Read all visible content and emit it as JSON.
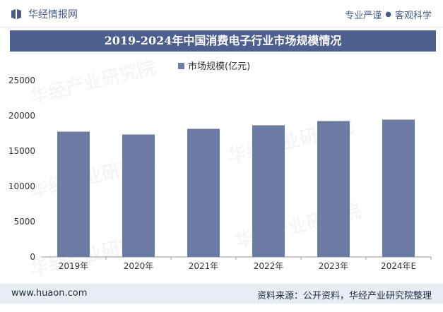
{
  "header": {
    "brand": "华经情报网",
    "tagline_left": "专业严谨",
    "tagline_right": "客观科学"
  },
  "title": "2019-2024年中国消费电子行业市场规模情况",
  "watermark": "华经产业研究院",
  "footer": {
    "url": "www.huaon.com",
    "source": "资料来源：公开资料，华经产业研究院整理"
  },
  "colors": {
    "bar": "#6b7ba3",
    "title_bg": "#4d5f8c",
    "brand": "#4a5c82"
  },
  "chart_data": {
    "type": "bar",
    "title": "2019-2024年中国消费电子行业市场规模情况",
    "categories": [
      "2019年",
      "2020年",
      "2021年",
      "2022年",
      "2023年",
      "2024年E"
    ],
    "series": [
      {
        "name": "市场规模(亿元)",
        "values": [
          17750,
          17350,
          18150,
          18650,
          19250,
          19450
        ]
      }
    ],
    "ylim": [
      0,
      25000
    ],
    "yticks": [
      0,
      5000,
      10000,
      15000,
      20000,
      25000
    ],
    "legend": "top-center",
    "xlabel": "",
    "ylabel": ""
  }
}
